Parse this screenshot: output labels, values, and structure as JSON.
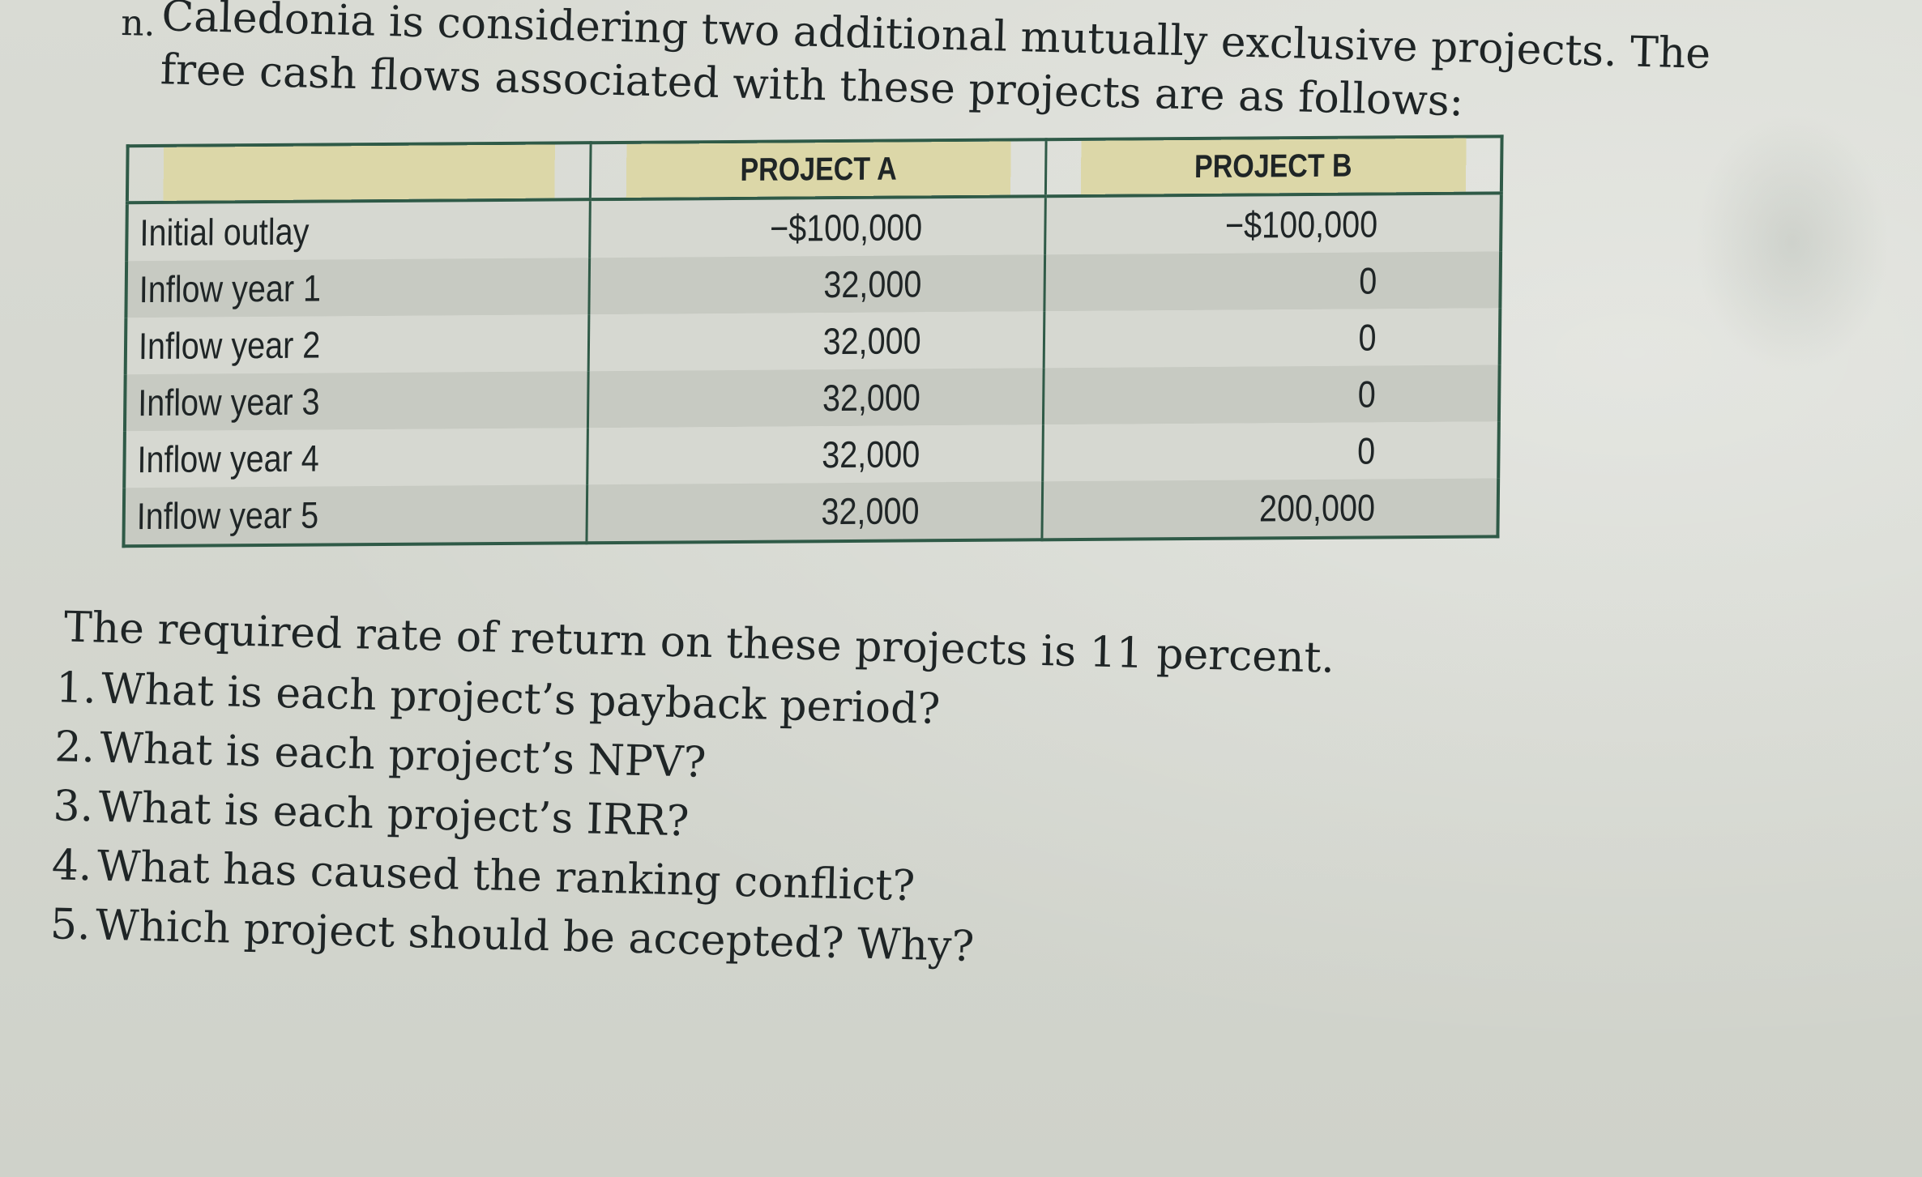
{
  "problem": {
    "marker": "n.",
    "intro": "Caledonia is considering two additional mutually exclusive projects. The free cash flows associated with these projects are as follows:"
  },
  "table": {
    "headers": [
      "",
      "PROJECT A",
      "PROJECT B"
    ],
    "rows": [
      {
        "label": "Initial outlay",
        "a": "−$100,000",
        "b": "−$100,000"
      },
      {
        "label": "Inflow year 1",
        "a": "32,000",
        "b": "0"
      },
      {
        "label": "Inflow year 2",
        "a": "32,000",
        "b": "0"
      },
      {
        "label": "Inflow year 3",
        "a": "32,000",
        "b": "0"
      },
      {
        "label": "Inflow year 4",
        "a": "32,000",
        "b": "0"
      },
      {
        "label": "Inflow year 5",
        "a": "32,000",
        "b": "200,000"
      }
    ]
  },
  "statement": "The required rate of return on these projects is 11 percent.",
  "questions": [
    {
      "num": "1.",
      "text": "What is each project’s payback period?"
    },
    {
      "num": "2.",
      "text": "What is each project’s NPV?"
    },
    {
      "num": "3.",
      "text": "What is each project’s IRR?"
    },
    {
      "num": "4.",
      "text": "What has caused the ranking conflict?"
    },
    {
      "num": "5.",
      "text": "Which project should be accepted? Why?"
    }
  ]
}
